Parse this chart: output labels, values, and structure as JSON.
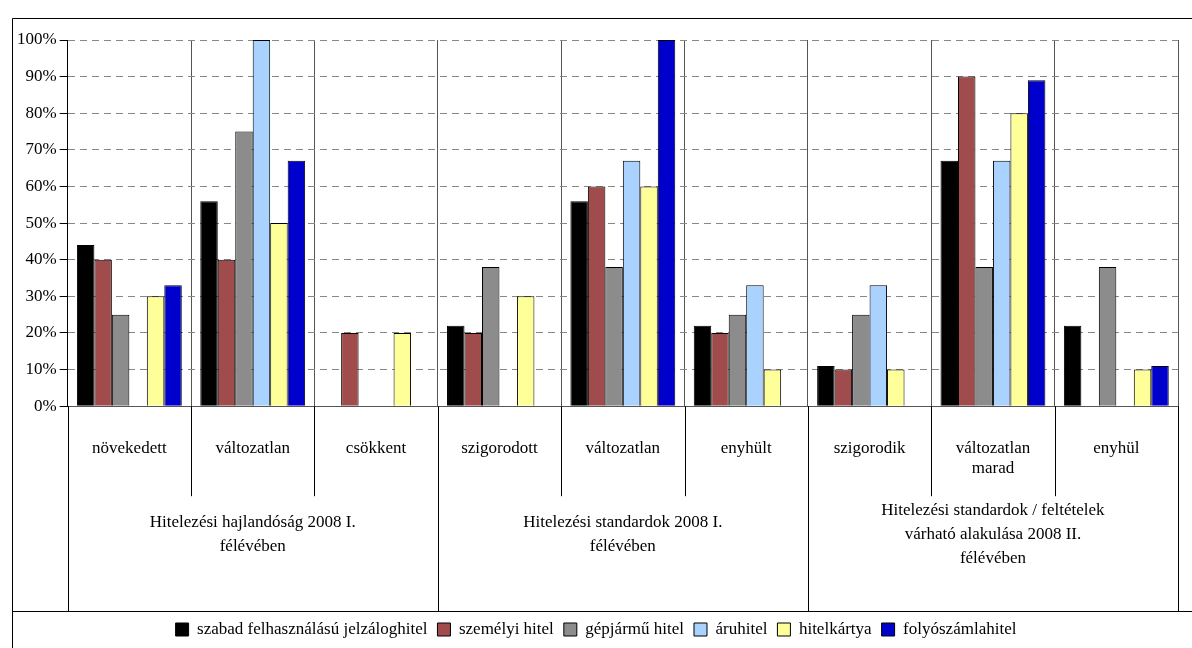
{
  "chart_data": {
    "type": "bar",
    "categories": [
      "növekedett",
      "változatlan",
      "csökkent",
      "szigorodott",
      "változatlan",
      "enyhült",
      "szigorodik",
      "változatlan marad",
      "enyhül"
    ],
    "annotations": [
      "Hitelezési hajlandóság 2008 I. félévében",
      "Hitelezési standardok 2008 I. félévében",
      "Hitelezési standardok / feltételek várható alakulása 2008 II. félévében"
    ],
    "series": [
      {
        "name": "szabad felhasználású jelzáloghitel",
        "color": "#000000",
        "values": [
          44,
          56,
          null,
          22,
          56,
          22,
          11,
          67,
          22
        ]
      },
      {
        "name": "személyi hitel",
        "color": "#a04c4c",
        "values": [
          40,
          40,
          20,
          20,
          60,
          20,
          10,
          90,
          null
        ]
      },
      {
        "name": "gépjármű hitel",
        "color": "#8c8c8c",
        "values": [
          25,
          75,
          null,
          38,
          38,
          25,
          25,
          38,
          38
        ]
      },
      {
        "name": "áruhitel",
        "color": "#aad2ff",
        "values": [
          null,
          100,
          null,
          null,
          67,
          33,
          33,
          67,
          null
        ]
      },
      {
        "name": "hitelkártya",
        "color": "#ffff99",
        "values": [
          30,
          50,
          20,
          30,
          60,
          10,
          10,
          80,
          10
        ]
      },
      {
        "name": "folyószámlahitel",
        "color": "#0000cc",
        "values": [
          33,
          67,
          null,
          null,
          100,
          null,
          null,
          89,
          11
        ]
      }
    ],
    "ylim": [
      0,
      100
    ],
    "yticks": [
      {
        "value": 0,
        "label": "0%"
      },
      {
        "value": 10,
        "label": "10%"
      },
      {
        "value": 20,
        "label": "20%"
      },
      {
        "value": 30,
        "label": "30%"
      },
      {
        "value": 40,
        "label": "40%"
      },
      {
        "value": 50,
        "label": "50%"
      },
      {
        "value": 60,
        "label": "60%"
      },
      {
        "value": 70,
        "label": "70%"
      },
      {
        "value": 80,
        "label": "80%"
      },
      {
        "value": 90,
        "label": "90%"
      },
      {
        "value": 100,
        "label": "100%"
      }
    ],
    "grid": true,
    "legend": "bottom"
  }
}
